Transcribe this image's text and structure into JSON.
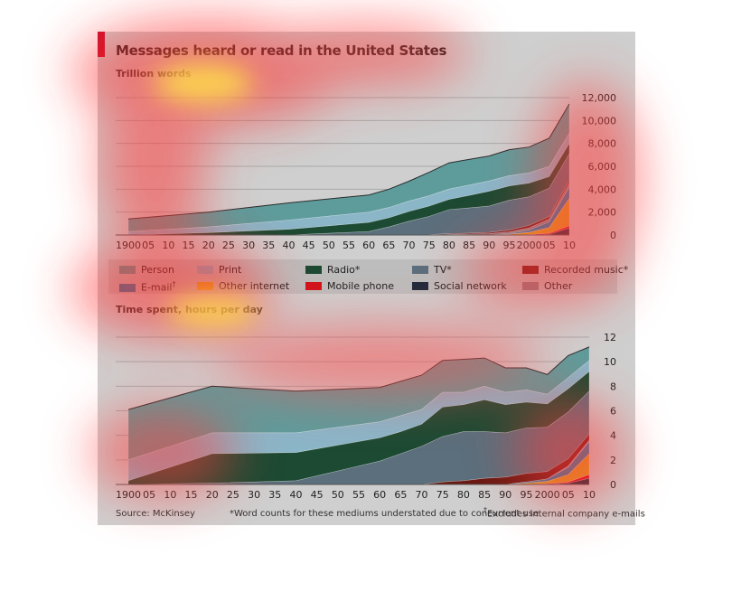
{
  "header": {
    "title": "Messages heard or read in the United States"
  },
  "footer": {
    "source": "Source: McKinsey",
    "note1": "*Word counts for these mediums understated due to concurrent use",
    "note2": "Excludes internal company e-mails",
    "dagger": "†"
  },
  "legend": [
    {
      "label": "Person",
      "color": "#5e9c9c",
      "sup": ""
    },
    {
      "label": "Print",
      "color": "#8ab6c8",
      "sup": ""
    },
    {
      "label": "Radio*",
      "color": "#1c4a33",
      "sup": ""
    },
    {
      "label": "TV*",
      "color": "#5b6f7c",
      "sup": ""
    },
    {
      "label": "Recorded music*",
      "color": "#6a1a14",
      "sup": ""
    },
    {
      "label": "E-mail",
      "color": "#2a7fa6",
      "sup": "†"
    },
    {
      "label": "Other internet",
      "color": "#d9a21b",
      "sup": ""
    },
    {
      "label": "Mobile phone",
      "color": "#d0141c",
      "sup": ""
    },
    {
      "label": "Social network",
      "color": "#1f2a3a",
      "sup": ""
    },
    {
      "label": "Other",
      "color": "#8b7f86",
      "sup": ""
    }
  ],
  "chart_data": [
    {
      "type": "area",
      "stacked": true,
      "title": "Trillion words",
      "x_tick_labels": [
        "1900",
        "05",
        "10",
        "15",
        "20",
        "25",
        "30",
        "35",
        "40",
        "45",
        "50",
        "55",
        "60",
        "65",
        "70",
        "75",
        "80",
        "85",
        "90",
        "95",
        "2000",
        "05",
        "10"
      ],
      "ylim": [
        0,
        12000
      ],
      "y_ticks": [
        0,
        2000,
        4000,
        6000,
        8000,
        10000,
        12000
      ],
      "y_tick_labels": [
        "0",
        "2,000",
        "4,000",
        "6,000",
        "8,000",
        "10,000",
        "12,000"
      ],
      "grid": true,
      "x": [
        1900,
        1920,
        1940,
        1960,
        1965,
        1970,
        1975,
        1980,
        1985,
        1990,
        1995,
        2000,
        2005,
        2010
      ],
      "series": [
        {
          "name": "Social network",
          "color": "#1f2a3a",
          "values": [
            0,
            0,
            0,
            0,
            0,
            0,
            0,
            0,
            0,
            0,
            0,
            0,
            50,
            600
          ]
        },
        {
          "name": "Mobile phone",
          "color": "#d0141c",
          "values": [
            0,
            0,
            0,
            0,
            0,
            0,
            0,
            0,
            0,
            0,
            0,
            30,
            100,
            200
          ]
        },
        {
          "name": "Other internet",
          "color": "#d9a21b",
          "values": [
            0,
            0,
            0,
            0,
            0,
            0,
            0,
            0,
            0,
            0,
            60,
            200,
            500,
            2400
          ]
        },
        {
          "name": "E-mail",
          "color": "#2a7fa6",
          "values": [
            0,
            0,
            0,
            0,
            0,
            0,
            0,
            0,
            0,
            0,
            70,
            200,
            500,
            1000
          ]
        },
        {
          "name": "Other",
          "color": "#8b7f86",
          "values": [
            0,
            0,
            0,
            0,
            0,
            0,
            0,
            50,
            80,
            120,
            150,
            200,
            250,
            300
          ]
        },
        {
          "name": "Recorded music",
          "color": "#6a1a14",
          "values": [
            0,
            0,
            0,
            0,
            0,
            0,
            20,
            60,
            80,
            100,
            150,
            200,
            200,
            200
          ]
        },
        {
          "name": "TV",
          "color": "#5b6f7c",
          "values": [
            0,
            0,
            0,
            300,
            700,
            1200,
            1600,
            2100,
            2200,
            2300,
            2600,
            2500,
            2500,
            2400
          ]
        },
        {
          "name": "Radio",
          "color": "#1c4a33",
          "values": [
            0,
            200,
            500,
            800,
            800,
            850,
            900,
            900,
            1100,
            1300,
            1250,
            1200,
            1000,
            900
          ]
        },
        {
          "name": "Print",
          "color": "#8ab6c8",
          "values": [
            300,
            500,
            800,
            900,
            900,
            900,
            900,
            900,
            900,
            900,
            900,
            900,
            900,
            900
          ]
        },
        {
          "name": "Person",
          "color": "#5e9c9c",
          "values": [
            1100,
            1300,
            1500,
            1500,
            1600,
            1750,
            2050,
            2290,
            2240,
            2180,
            2270,
            2250,
            2460,
            2550
          ]
        }
      ]
    },
    {
      "type": "area",
      "stacked": true,
      "title": "Time spent, hours per day",
      "x_tick_labels": [
        "1900",
        "05",
        "10",
        "15",
        "20",
        "25",
        "30",
        "35",
        "40",
        "45",
        "50",
        "55",
        "60",
        "65",
        "70",
        "75",
        "80",
        "85",
        "90",
        "95",
        "2000",
        "05",
        "10"
      ],
      "ylim": [
        0,
        12
      ],
      "y_ticks": [
        0,
        2,
        4,
        6,
        8,
        10,
        12
      ],
      "y_tick_labels": [
        "0",
        "2",
        "4",
        "6",
        "8",
        "10",
        "12"
      ],
      "grid": true,
      "x": [
        1900,
        1920,
        1940,
        1960,
        1965,
        1970,
        1975,
        1980,
        1985,
        1990,
        1995,
        2000,
        2005,
        2010
      ],
      "series": [
        {
          "name": "Social network",
          "color": "#1f2a3a",
          "values": [
            0,
            0,
            0,
            0,
            0,
            0,
            0,
            0,
            0,
            0,
            0,
            0,
            0.1,
            0.5
          ]
        },
        {
          "name": "Mobile phone",
          "color": "#d0141c",
          "values": [
            0,
            0,
            0,
            0,
            0,
            0,
            0,
            0,
            0,
            0,
            0,
            0.05,
            0.1,
            0.3
          ]
        },
        {
          "name": "Other internet",
          "color": "#d9a21b",
          "values": [
            0,
            0,
            0,
            0,
            0,
            0,
            0,
            0,
            0,
            0,
            0.1,
            0.2,
            0.6,
            1.7
          ]
        },
        {
          "name": "E-mail",
          "color": "#2a7fa6",
          "values": [
            0,
            0,
            0,
            0,
            0,
            0,
            0,
            0,
            0,
            0,
            0.1,
            0.2,
            0.6,
            1.0
          ]
        },
        {
          "name": "Other",
          "color": "#8b7f86",
          "values": [
            0,
            0,
            0,
            0,
            0,
            0,
            0,
            0,
            0,
            0,
            0,
            0,
            0.1,
            0.1
          ]
        },
        {
          "name": "Recorded music",
          "color": "#6a1a14",
          "values": [
            0,
            0,
            0,
            0,
            0,
            0,
            0.2,
            0.3,
            0.5,
            0.6,
            0.7,
            0.6,
            0.6,
            0.5
          ]
        },
        {
          "name": "TV",
          "color": "#5b6f7c",
          "values": [
            0,
            0.1,
            0.3,
            1.9,
            2.5,
            3.1,
            3.7,
            4.0,
            3.8,
            3.6,
            3.7,
            3.6,
            3.8,
            3.5
          ]
        },
        {
          "name": "Radio",
          "color": "#1c4a33",
          "values": [
            0.3,
            2.4,
            2.3,
            1.9,
            1.8,
            1.8,
            2.4,
            2.2,
            2.6,
            2.3,
            2.1,
            1.9,
            1.9,
            1.6
          ]
        },
        {
          "name": "Print",
          "color": "#8ab6c8",
          "values": [
            1.7,
            1.7,
            1.6,
            1.3,
            1.3,
            1.2,
            1.2,
            1.0,
            1.1,
            1.0,
            1.0,
            0.8,
            0.9,
            0.9
          ]
        },
        {
          "name": "Person",
          "color": "#5e9c9c",
          "values": [
            4.1,
            3.8,
            3.4,
            2.8,
            2.8,
            2.8,
            2.6,
            2.7,
            2.3,
            2.0,
            1.8,
            1.6,
            1.8,
            1.1
          ]
        }
      ]
    }
  ]
}
